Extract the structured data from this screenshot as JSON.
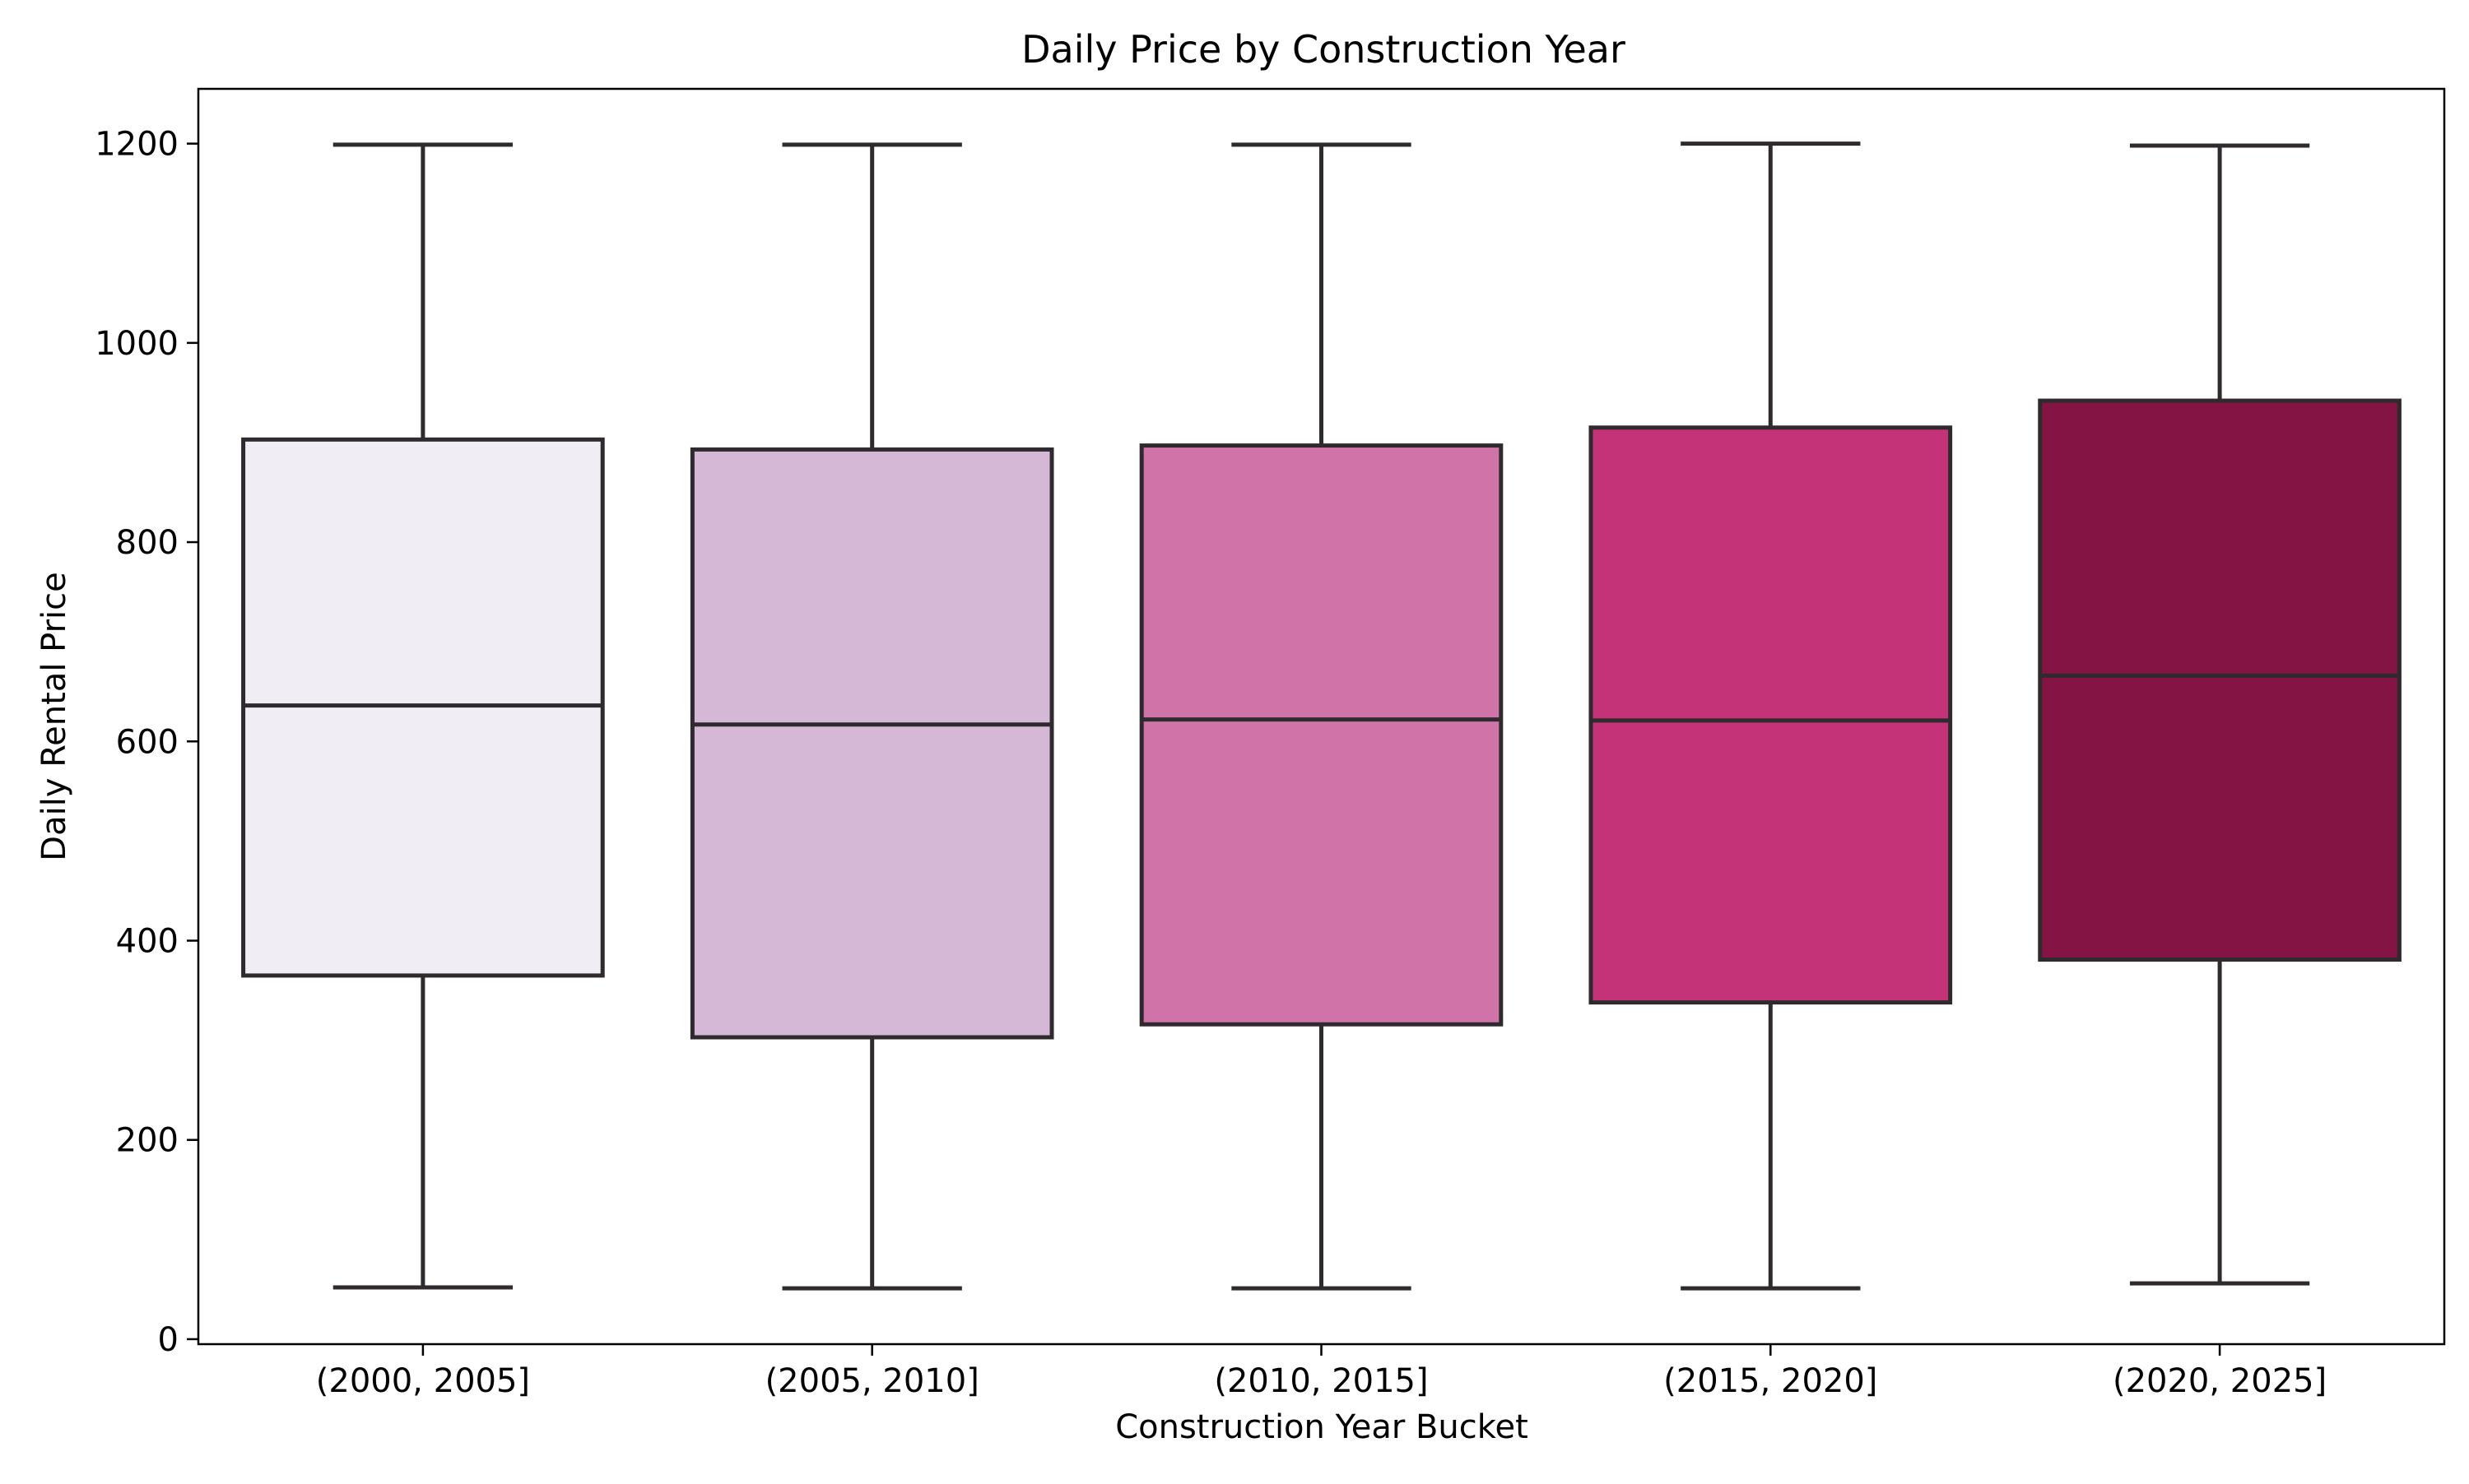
{
  "chart_data": {
    "type": "box",
    "title": "Daily Price by Construction Year",
    "xlabel": "Construction Year Bucket",
    "ylabel": "Daily Rental Price",
    "ylim": [
      -5,
      1255
    ],
    "yticks": [
      0,
      200,
      400,
      600,
      800,
      1000,
      1200
    ],
    "grid": false,
    "categories": [
      "(2000, 2005]",
      "(2005, 2010]",
      "(2010, 2015]",
      "(2015, 2020]",
      "(2020, 2025]"
    ],
    "boxes": [
      {
        "category": "(2000, 2005]",
        "min": 52,
        "q1": 365,
        "median": 636,
        "q3": 903,
        "max": 1199,
        "color": "#f1edf5"
      },
      {
        "category": "(2005, 2010]",
        "min": 51,
        "q1": 303,
        "median": 617,
        "q3": 893,
        "max": 1199,
        "color": "#d4b8d6"
      },
      {
        "category": "(2010, 2015]",
        "min": 51,
        "q1": 316,
        "median": 622,
        "q3": 897,
        "max": 1199,
        "color": "#cf73a8"
      },
      {
        "category": "(2015, 2020]",
        "min": 51,
        "q1": 338,
        "median": 621,
        "q3": 915,
        "max": 1200,
        "color": "#c43277"
      },
      {
        "category": "(2020, 2025]",
        "min": 56,
        "q1": 381,
        "median": 666,
        "q3": 942,
        "max": 1198,
        "color": "#841443"
      }
    ]
  }
}
